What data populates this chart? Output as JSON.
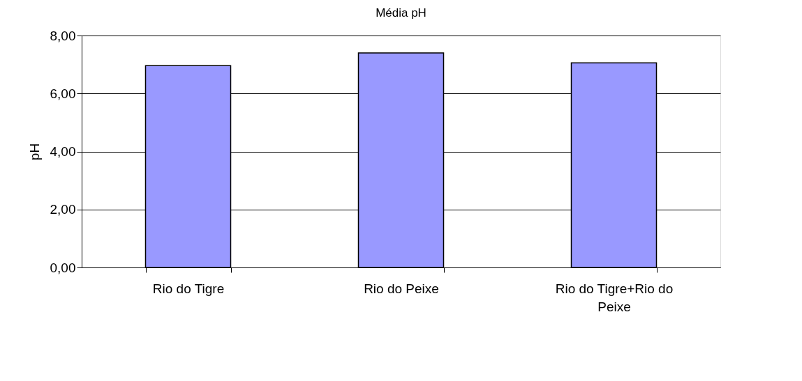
{
  "chart_data": {
    "type": "bar",
    "title": "Média pH",
    "ylabel": "pH",
    "categories": [
      "Rio do Tigre",
      "Rio do Peixe",
      "Rio do Tigre+Rio do Peixe"
    ],
    "values": [
      6.96,
      7.4,
      7.06
    ],
    "color": "#9999ff",
    "ylim": [
      0,
      8
    ],
    "yticks": [
      {
        "value": 0,
        "label": "0,00"
      },
      {
        "value": 2,
        "label": "2,00"
      },
      {
        "value": 4,
        "label": "4,00"
      },
      {
        "value": 6,
        "label": "6,00"
      },
      {
        "value": 8,
        "label": "8,00"
      }
    ],
    "grid": "y"
  }
}
